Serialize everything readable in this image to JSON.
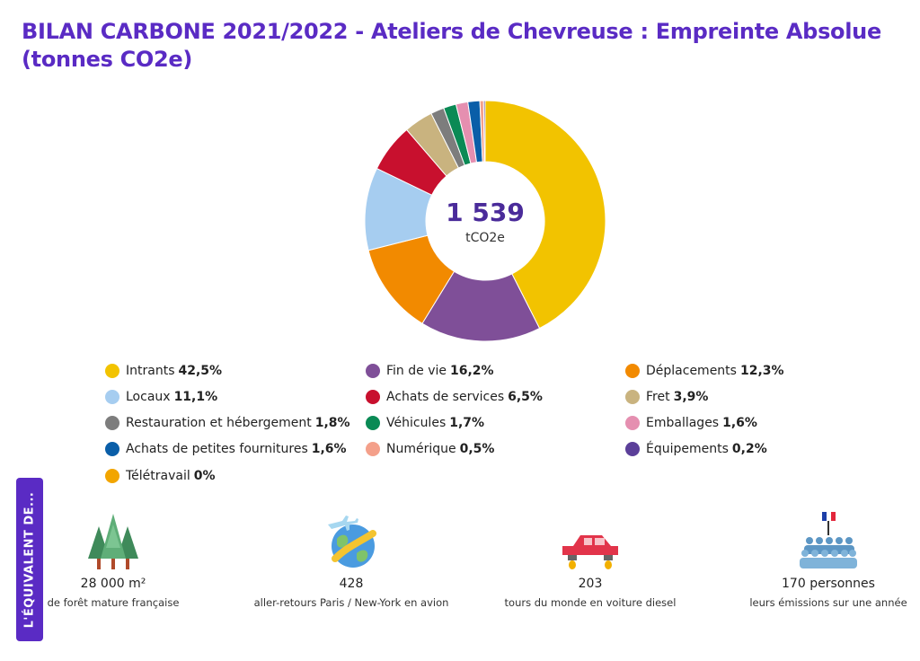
{
  "title": "BILAN CARBONE 2021/2022 - Ateliers de Chevreuse : Empreinte Absolue (tonnes CO2e)",
  "center": {
    "value": "1 539",
    "unit": "tCO2e"
  },
  "chart_data": {
    "type": "pie",
    "title": "BILAN CARBONE 2021/2022 - Ateliers de Chevreuse : Empreinte Absolue (tonnes CO2e)",
    "total": "1 539",
    "unit": "tCO2e",
    "slices": [
      {
        "label": "Intrants",
        "value": 42.5,
        "pct": "42,5%",
        "color": "#f2c300"
      },
      {
        "label": "Fin de vie",
        "value": 16.2,
        "pct": "16,2%",
        "color": "#7f4f98"
      },
      {
        "label": "Déplacements",
        "value": 12.3,
        "pct": "12,3%",
        "color": "#f28a00"
      },
      {
        "label": "Locaux",
        "value": 11.1,
        "pct": "11,1%",
        "color": "#a6cdf0"
      },
      {
        "label": "Achats de services",
        "value": 6.5,
        "pct": "6,5%",
        "color": "#c8102e"
      },
      {
        "label": "Fret",
        "value": 3.9,
        "pct": "3,9%",
        "color": "#c9b37f"
      },
      {
        "label": "Restauration et hébergement",
        "value": 1.8,
        "pct": "1,8%",
        "color": "#7d7d7d"
      },
      {
        "label": "Véhicules",
        "value": 1.7,
        "pct": "1,7%",
        "color": "#0a8a55"
      },
      {
        "label": "Emballages",
        "value": 1.6,
        "pct": "1,6%",
        "color": "#e58fb0"
      },
      {
        "label": "Achats de petites fournitures",
        "value": 1.6,
        "pct": "1,6%",
        "color": "#0a5ea8"
      },
      {
        "label": "Numérique",
        "value": 0.5,
        "pct": "0,5%",
        "color": "#f4a08a"
      },
      {
        "label": "Équipements",
        "value": 0.2,
        "pct": "0,2%",
        "color": "#5b3f99"
      },
      {
        "label": "Télétravail",
        "value": 0,
        "pct": "0%",
        "color": "#f2a500"
      }
    ]
  },
  "equivalent": {
    "tab_label": "L'ÉQUIVALENT DE...",
    "items": [
      {
        "value": "28 000 m²",
        "desc": "de forêt mature française",
        "icon": "forest-icon"
      },
      {
        "value": "428",
        "desc": "aller-retours Paris / New-York en avion",
        "icon": "globe-plane-icon"
      },
      {
        "value": "203",
        "desc": "tours du monde en voiture diesel",
        "icon": "car-icon"
      },
      {
        "value": "170 personnes",
        "desc": "leurs émissions sur une année",
        "icon": "people-icon"
      }
    ]
  }
}
